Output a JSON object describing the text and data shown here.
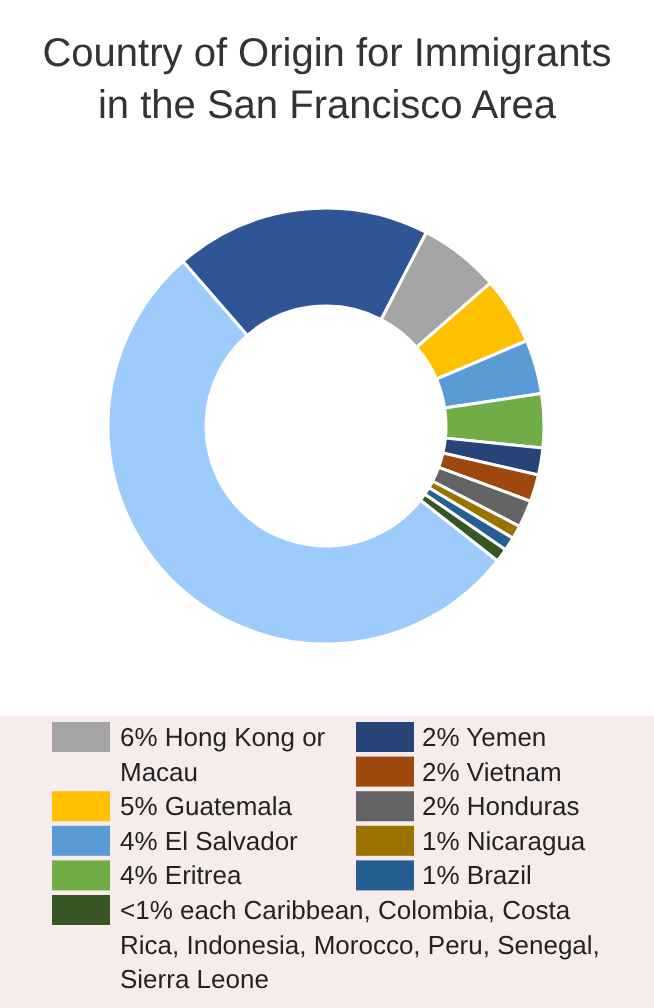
{
  "chart_data": {
    "type": "donut",
    "title": "Country of Origin for Immigrants in the San Francisco Area",
    "categories": [
      null,
      "6% Hong Kong or Macau",
      "5% Guatemala",
      "4% El Salvador",
      "4% Eritrea",
      "2% Yemen",
      "2% Vietnam",
      "2% Honduras",
      "1% Nicaragua",
      "1% Brazil",
      "<1% each Caribbean, Colombia, Costa Rica, Indonesia, Morocco, Peru, Senegal, Sierra Leone",
      null
    ],
    "values": [
      19,
      6,
      5,
      4,
      4,
      2,
      2,
      2,
      1,
      1,
      1,
      53
    ],
    "colors": [
      "#2f5597",
      "#a5a5a5",
      "#ffc000",
      "#5b9bd5",
      "#70ad47",
      "#264478",
      "#9e480e",
      "#636363",
      "#997300",
      "#255e91",
      "#375623",
      "#9dcbfb"
    ],
    "legend": "bottom"
  }
}
